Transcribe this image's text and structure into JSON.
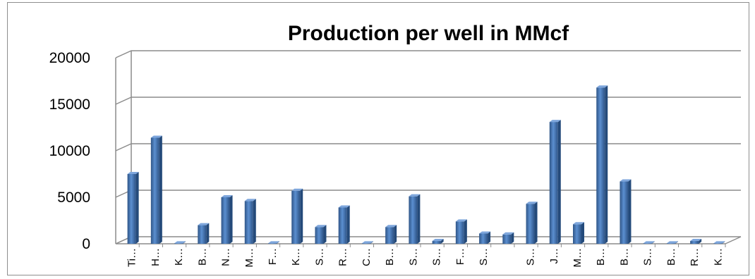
{
  "chart_data": {
    "type": "bar",
    "title": "Production per well in MMcf",
    "xlabel": "",
    "ylabel": "",
    "ylim": [
      0,
      20000
    ],
    "yticks": [
      "0",
      "5000",
      "10000",
      "15000",
      "20000"
    ],
    "grid": true,
    "legend": "none",
    "bar_color": "#4f81bd",
    "categories": [
      "Ti…",
      "H…",
      "K…",
      "B…",
      "N…",
      "M…",
      "F…",
      "K…",
      "S…",
      "R…",
      "C…",
      "B…",
      "S…",
      "S…",
      "F…",
      "S…",
      "",
      "S…",
      "J…",
      "M…",
      "B…",
      "B…",
      "S…",
      "B…",
      "R…",
      "K…"
    ],
    "values": [
      7500,
      11400,
      50,
      2000,
      5000,
      4600,
      50,
      5700,
      1800,
      3900,
      50,
      1800,
      5100,
      300,
      2400,
      1100,
      1000,
      4300,
      13100,
      2100,
      16800,
      6700,
      50,
      50,
      300,
      50
    ]
  }
}
